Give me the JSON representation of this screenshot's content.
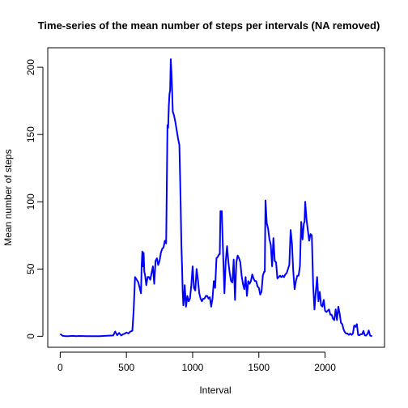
{
  "chart_data": {
    "type": "line",
    "title": "Time-series of the mean number of steps per intervals (NA removed)",
    "xlabel": "Interval",
    "ylabel": "Mean number of steps",
    "xlim": [
      -94,
      2449
    ],
    "ylim": [
      -8.2,
      214.5
    ],
    "x_ticks": [
      0,
      500,
      1000,
      1500,
      2000
    ],
    "y_ticks": [
      0,
      50,
      100,
      150,
      200
    ],
    "x_tick_labels": [
      "0",
      "500",
      "1000",
      "1500",
      "2000"
    ],
    "y_tick_labels": [
      "0",
      "50",
      "100",
      "150",
      "200"
    ],
    "grid": false,
    "legend": "none",
    "line_color": "#0000ff",
    "series": [
      {
        "x": [
          0,
          20,
          40,
          60,
          100,
          120,
          140,
          200,
          300,
          400,
          415,
          430,
          445,
          460,
          475,
          490,
          500,
          515,
          530,
          545,
          555,
          565,
          575,
          590,
          605,
          610,
          615,
          620,
          625,
          630,
          635,
          640,
          650,
          660,
          670,
          680,
          690,
          700,
          710,
          720,
          730,
          740,
          750,
          760,
          770,
          780,
          790,
          800,
          810,
          815,
          820,
          825,
          830,
          835,
          840,
          845,
          850,
          860,
          870,
          880,
          890,
          900,
          905,
          910,
          915,
          920,
          925,
          930,
          935,
          940,
          950,
          960,
          970,
          980,
          990,
          1000,
          1010,
          1020,
          1030,
          1040,
          1050,
          1060,
          1070,
          1080,
          1090,
          1100,
          1110,
          1120,
          1130,
          1140,
          1150,
          1160,
          1170,
          1180,
          1190,
          1200,
          1205,
          1210,
          1220,
          1230,
          1240,
          1250,
          1260,
          1270,
          1280,
          1290,
          1300,
          1310,
          1320,
          1330,
          1340,
          1350,
          1360,
          1370,
          1380,
          1390,
          1400,
          1410,
          1420,
          1430,
          1440,
          1450,
          1460,
          1470,
          1480,
          1490,
          1500,
          1510,
          1520,
          1530,
          1540,
          1545,
          1550,
          1560,
          1570,
          1580,
          1590,
          1600,
          1610,
          1620,
          1630,
          1640,
          1650,
          1660,
          1670,
          1680,
          1690,
          1700,
          1710,
          1720,
          1730,
          1740,
          1750,
          1760,
          1770,
          1780,
          1790,
          1800,
          1810,
          1820,
          1830,
          1840,
          1845,
          1850,
          1860,
          1870,
          1880,
          1890,
          1900,
          1910,
          1920,
          1930,
          1940,
          1950,
          1960,
          1970,
          1980,
          1990,
          2000,
          2010,
          2020,
          2030,
          2040,
          2050,
          2060,
          2070,
          2080,
          2090,
          2100,
          2110,
          2120,
          2130,
          2140,
          2150,
          2160,
          2170,
          2180,
          2190,
          2200,
          2210,
          2220,
          2230,
          2240,
          2250,
          2260,
          2270,
          2280,
          2290,
          2300,
          2310,
          2320,
          2330,
          2340,
          2355
        ],
        "y": [
          1.7,
          0.3,
          0.1,
          0.1,
          0.3,
          0.1,
          0.2,
          0.1,
          0.1,
          0.6,
          3.5,
          0.8,
          2.5,
          0.6,
          1.5,
          2.1,
          2.8,
          2.1,
          3.5,
          4.1,
          20.0,
          44.0,
          42.5,
          40.0,
          34.0,
          32.0,
          52.0,
          63.0,
          52.0,
          62.0,
          48.0,
          46.0,
          38.0,
          44.0,
          44.0,
          42.0,
          47.0,
          52.0,
          39.0,
          56.0,
          58.0,
          53.0,
          56.0,
          62.0,
          65.0,
          66.0,
          71.0,
          69.0,
          157.0,
          155.0,
          171.0,
          180.0,
          183.0,
          206.0,
          196.0,
          183.0,
          167.0,
          164.0,
          159.0,
          153.0,
          147.0,
          142.0,
          120.0,
          96.0,
          68.0,
          52.0,
          33.0,
          23.0,
          28.0,
          38.0,
          22.0,
          30.0,
          26.0,
          28.0,
          38.0,
          52.0,
          36.0,
          34.0,
          50.0,
          42.0,
          32.0,
          28.0,
          26.0,
          28.0,
          28.0,
          30.0,
          30.0,
          28.0,
          29.0,
          22.0,
          28.0,
          41.0,
          36.0,
          58.0,
          59.0,
          61.0,
          61.0,
          93.0,
          93.0,
          62.0,
          32.0,
          56.0,
          67.0,
          55.0,
          47.0,
          41.0,
          40.0,
          57.0,
          27.0,
          55.0,
          60.0,
          58.0,
          55.0,
          45.0,
          39.0,
          35.0,
          44.0,
          30.0,
          41.0,
          39.0,
          41.0,
          46.0,
          43.0,
          41.0,
          41.0,
          37.0,
          36.0,
          31.0,
          33.0,
          45.0,
          48.0,
          48.0,
          101.0,
          84.0,
          80.0,
          72.0,
          68.0,
          52.0,
          73.0,
          56.0,
          55.0,
          43.0,
          44.0,
          45.0,
          44.0,
          45.0,
          44.0,
          46.0,
          47.0,
          50.0,
          53.0,
          79.0,
          69.0,
          48.0,
          35.0,
          41.0,
          45.0,
          45.0,
          52.0,
          85.0,
          72.0,
          84.0,
          85.0,
          100.0,
          87.0,
          79.0,
          71.0,
          76.0,
          75.0,
          38.0,
          20.0,
          33.0,
          44.0,
          26.0,
          33.0,
          23.0,
          22.0,
          27.0,
          19.0,
          18.0,
          19.0,
          20.0,
          16.0,
          16.0,
          13.0,
          12.0,
          20.0,
          12.0,
          22.0,
          17.0,
          10.0,
          9.0,
          5.0,
          3.0,
          2.0,
          2.0,
          1.0,
          2.0,
          1.0,
          2.0,
          8.0,
          7.0,
          9.0,
          1.0,
          0.8,
          1.6,
          1.5,
          4.0,
          0.7,
          0.5,
          1.7,
          4.3,
          0.5,
          0.0
        ]
      }
    ]
  }
}
